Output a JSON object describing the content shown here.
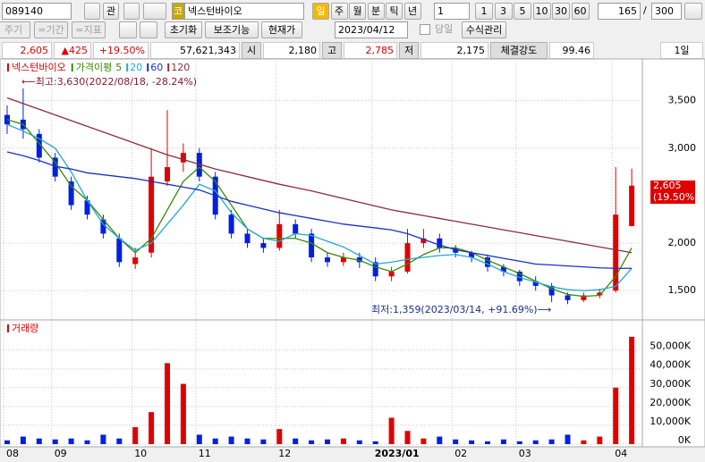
{
  "toolbar": {
    "code": "089140",
    "gwan": "관",
    "market": "코",
    "name": "넥스턴바이오",
    "periods": [
      "일",
      "주",
      "월",
      "분",
      "틱",
      "년"
    ],
    "unit": "1",
    "intervals": [
      "1",
      "3",
      "5",
      "10",
      "30",
      "60"
    ],
    "count": "165",
    "sep": "/",
    "max": "300"
  },
  "toolbar2": {
    "disabled": [
      "주기",
      "=기간",
      "=지표"
    ],
    "buttons": [
      "초기화",
      "보조기능",
      "현재가"
    ],
    "date": "2023/04/12",
    "today": "당일",
    "formula": "수식관리"
  },
  "quote": {
    "price": "2,605",
    "change": "▲425",
    "rate": "+19.50%",
    "volume": "57,621,343",
    "open_label": "시",
    "open": "2,180",
    "high_label": "고",
    "high": "2,785",
    "low_label": "저",
    "low": "2,175",
    "strength_label": "체결강도",
    "strength": "99.46",
    "period": "1일"
  },
  "chart_data": {
    "type": "candlestick",
    "name": "넥스턴바이오",
    "up_color": "#e00000",
    "down_color": "#0020e0",
    "categories": [
      "08",
      null,
      null,
      "09",
      null,
      null,
      null,
      null,
      "10",
      null,
      null,
      null,
      "11",
      null,
      null,
      null,
      null,
      "12",
      null,
      null,
      null,
      null,
      null,
      "2023/01",
      null,
      null,
      null,
      null,
      "02",
      null,
      null,
      null,
      "03",
      null,
      null,
      null,
      null,
      null,
      "04",
      null
    ],
    "open": [
      3350,
      3300,
      3150,
      2900,
      2650,
      2450,
      2250,
      2050,
      1780,
      1900,
      2650,
      2850,
      2950,
      2700,
      2300,
      2100,
      2000,
      1950,
      2200,
      2100,
      1850,
      1800,
      1850,
      1800,
      1650,
      1700,
      2000,
      2050,
      1950,
      1900,
      1850,
      1750,
      1700,
      1600,
      1550,
      1450,
      1400,
      1450,
      1500,
      2180
    ],
    "high": [
      3450,
      3630,
      3200,
      2950,
      2700,
      2500,
      2300,
      2100,
      1950,
      3000,
      3400,
      3050,
      3000,
      2750,
      2350,
      2150,
      2050,
      2350,
      2250,
      2150,
      1900,
      1900,
      1900,
      1850,
      1750,
      2150,
      2150,
      2100,
      1980,
      1920,
      1880,
      1780,
      1720,
      1650,
      1580,
      1480,
      1480,
      1520,
      2800,
      2785
    ],
    "low": [
      3150,
      3100,
      2850,
      2650,
      2350,
      2250,
      2050,
      1750,
      1730,
      1850,
      2600,
      2750,
      2650,
      2250,
      2050,
      1950,
      1900,
      1920,
      2050,
      1800,
      1750,
      1760,
      1740,
      1600,
      1600,
      1680,
      1950,
      1900,
      1850,
      1800,
      1700,
      1650,
      1550,
      1500,
      1380,
      1359,
      1380,
      1420,
      1480,
      2175
    ],
    "close": [
      3250,
      3200,
      2900,
      2700,
      2400,
      2300,
      2100,
      1800,
      1850,
      2700,
      2800,
      2950,
      2700,
      2300,
      2100,
      2000,
      1950,
      2200,
      2100,
      1850,
      1800,
      1850,
      1800,
      1650,
      1700,
      2000,
      2050,
      1950,
      1900,
      1850,
      1750,
      1700,
      1600,
      1550,
      1450,
      1400,
      1450,
      1480,
      2300,
      2605
    ],
    "ma_label": "가격이평",
    "series": [
      {
        "name": "5",
        "color": "#3a8a00",
        "values": [
          3300,
          3250,
          3050,
          2850,
          2600,
          2450,
          2250,
          2050,
          1900,
          2050,
          2350,
          2650,
          2800,
          2650,
          2400,
          2150,
          2050,
          2050,
          2050,
          2000,
          1900,
          1850,
          1820,
          1750,
          1700,
          1780,
          1880,
          1950,
          1950,
          1900,
          1820,
          1750,
          1680,
          1600,
          1520,
          1460,
          1440,
          1450,
          1650,
          1950
        ]
      },
      {
        "name": "20",
        "color": "#1fa8d8",
        "values": [
          3250,
          3180,
          3100,
          3000,
          2750,
          2450,
          2200,
          2050,
          1925,
          2000,
          2200,
          2400,
          2620,
          2550,
          2320,
          2150,
          2050,
          2020,
          2100,
          2080,
          2020,
          1960,
          1870,
          1780,
          1800,
          1830,
          1850,
          1870,
          1880,
          1850,
          1780,
          1700,
          1640,
          1590,
          1540,
          1510,
          1500,
          1510,
          1545,
          1735
        ]
      },
      {
        "name": "60",
        "color": "#1a2fcc",
        "values": [
          2960,
          2920,
          2870,
          2810,
          2780,
          2740,
          2720,
          2700,
          2680,
          2650,
          2620,
          2590,
          2560,
          2500,
          2440,
          2400,
          2360,
          2320,
          2290,
          2260,
          2230,
          2200,
          2180,
          2160,
          2140,
          2100,
          2040,
          1980,
          1930,
          1900,
          1870,
          1840,
          1810,
          1780,
          1770,
          1760,
          1750,
          1740,
          1735,
          1735
        ]
      },
      {
        "name": "120",
        "color": "#8b2e3a",
        "values": [
          3530,
          3470,
          3410,
          3350,
          3290,
          3230,
          3170,
          3110,
          3050,
          2990,
          2930,
          2880,
          2830,
          2780,
          2740,
          2700,
          2660,
          2620,
          2585,
          2550,
          2510,
          2470,
          2430,
          2390,
          2350,
          2320,
          2290,
          2260,
          2230,
          2200,
          2170,
          2140,
          2110,
          2080,
          2050,
          2020,
          1990,
          1960,
          1930,
          1900
        ]
      }
    ],
    "ylim": [
      1220,
      3920
    ],
    "yticks": [
      {
        "value": 1500,
        "label": "1,500"
      },
      {
        "value": 2000,
        "label": "2,000"
      },
      {
        "value": 3000,
        "label": "3,000"
      },
      {
        "value": 3500,
        "label": "3,500"
      }
    ],
    "max_note": "⟵최고:3,630(2022/08/18, -28.24%)",
    "min_note": "최저:1,359(2023/03/14, +91.69%)⟶",
    "last_price_label": "2,605",
    "last_rate_label": "(19.50%)",
    "volume_title": "거래량",
    "volume": [
      2000,
      4000,
      3000,
      2500,
      3000,
      2000,
      5000,
      3000,
      9000,
      17000,
      43000,
      32000,
      5000,
      3000,
      4000,
      3000,
      2500,
      8000,
      3000,
      2000,
      2500,
      3000,
      2000,
      1500,
      14000,
      7000,
      3000,
      4000,
      2500,
      2000,
      1500,
      2500,
      1500,
      2000,
      2500,
      5000,
      2000,
      4000,
      30000,
      57000
    ],
    "volume_ylim": [
      0,
      65000
    ],
    "volume_yticks": [
      {
        "value": 0,
        "label": "0K"
      },
      {
        "value": 10000,
        "label": "10,000K"
      },
      {
        "value": 20000,
        "label": "20,000K"
      },
      {
        "value": 30000,
        "label": "30,000K"
      },
      {
        "value": 40000,
        "label": "40,000K"
      },
      {
        "value": 50000,
        "label": "50,000K"
      }
    ]
  }
}
